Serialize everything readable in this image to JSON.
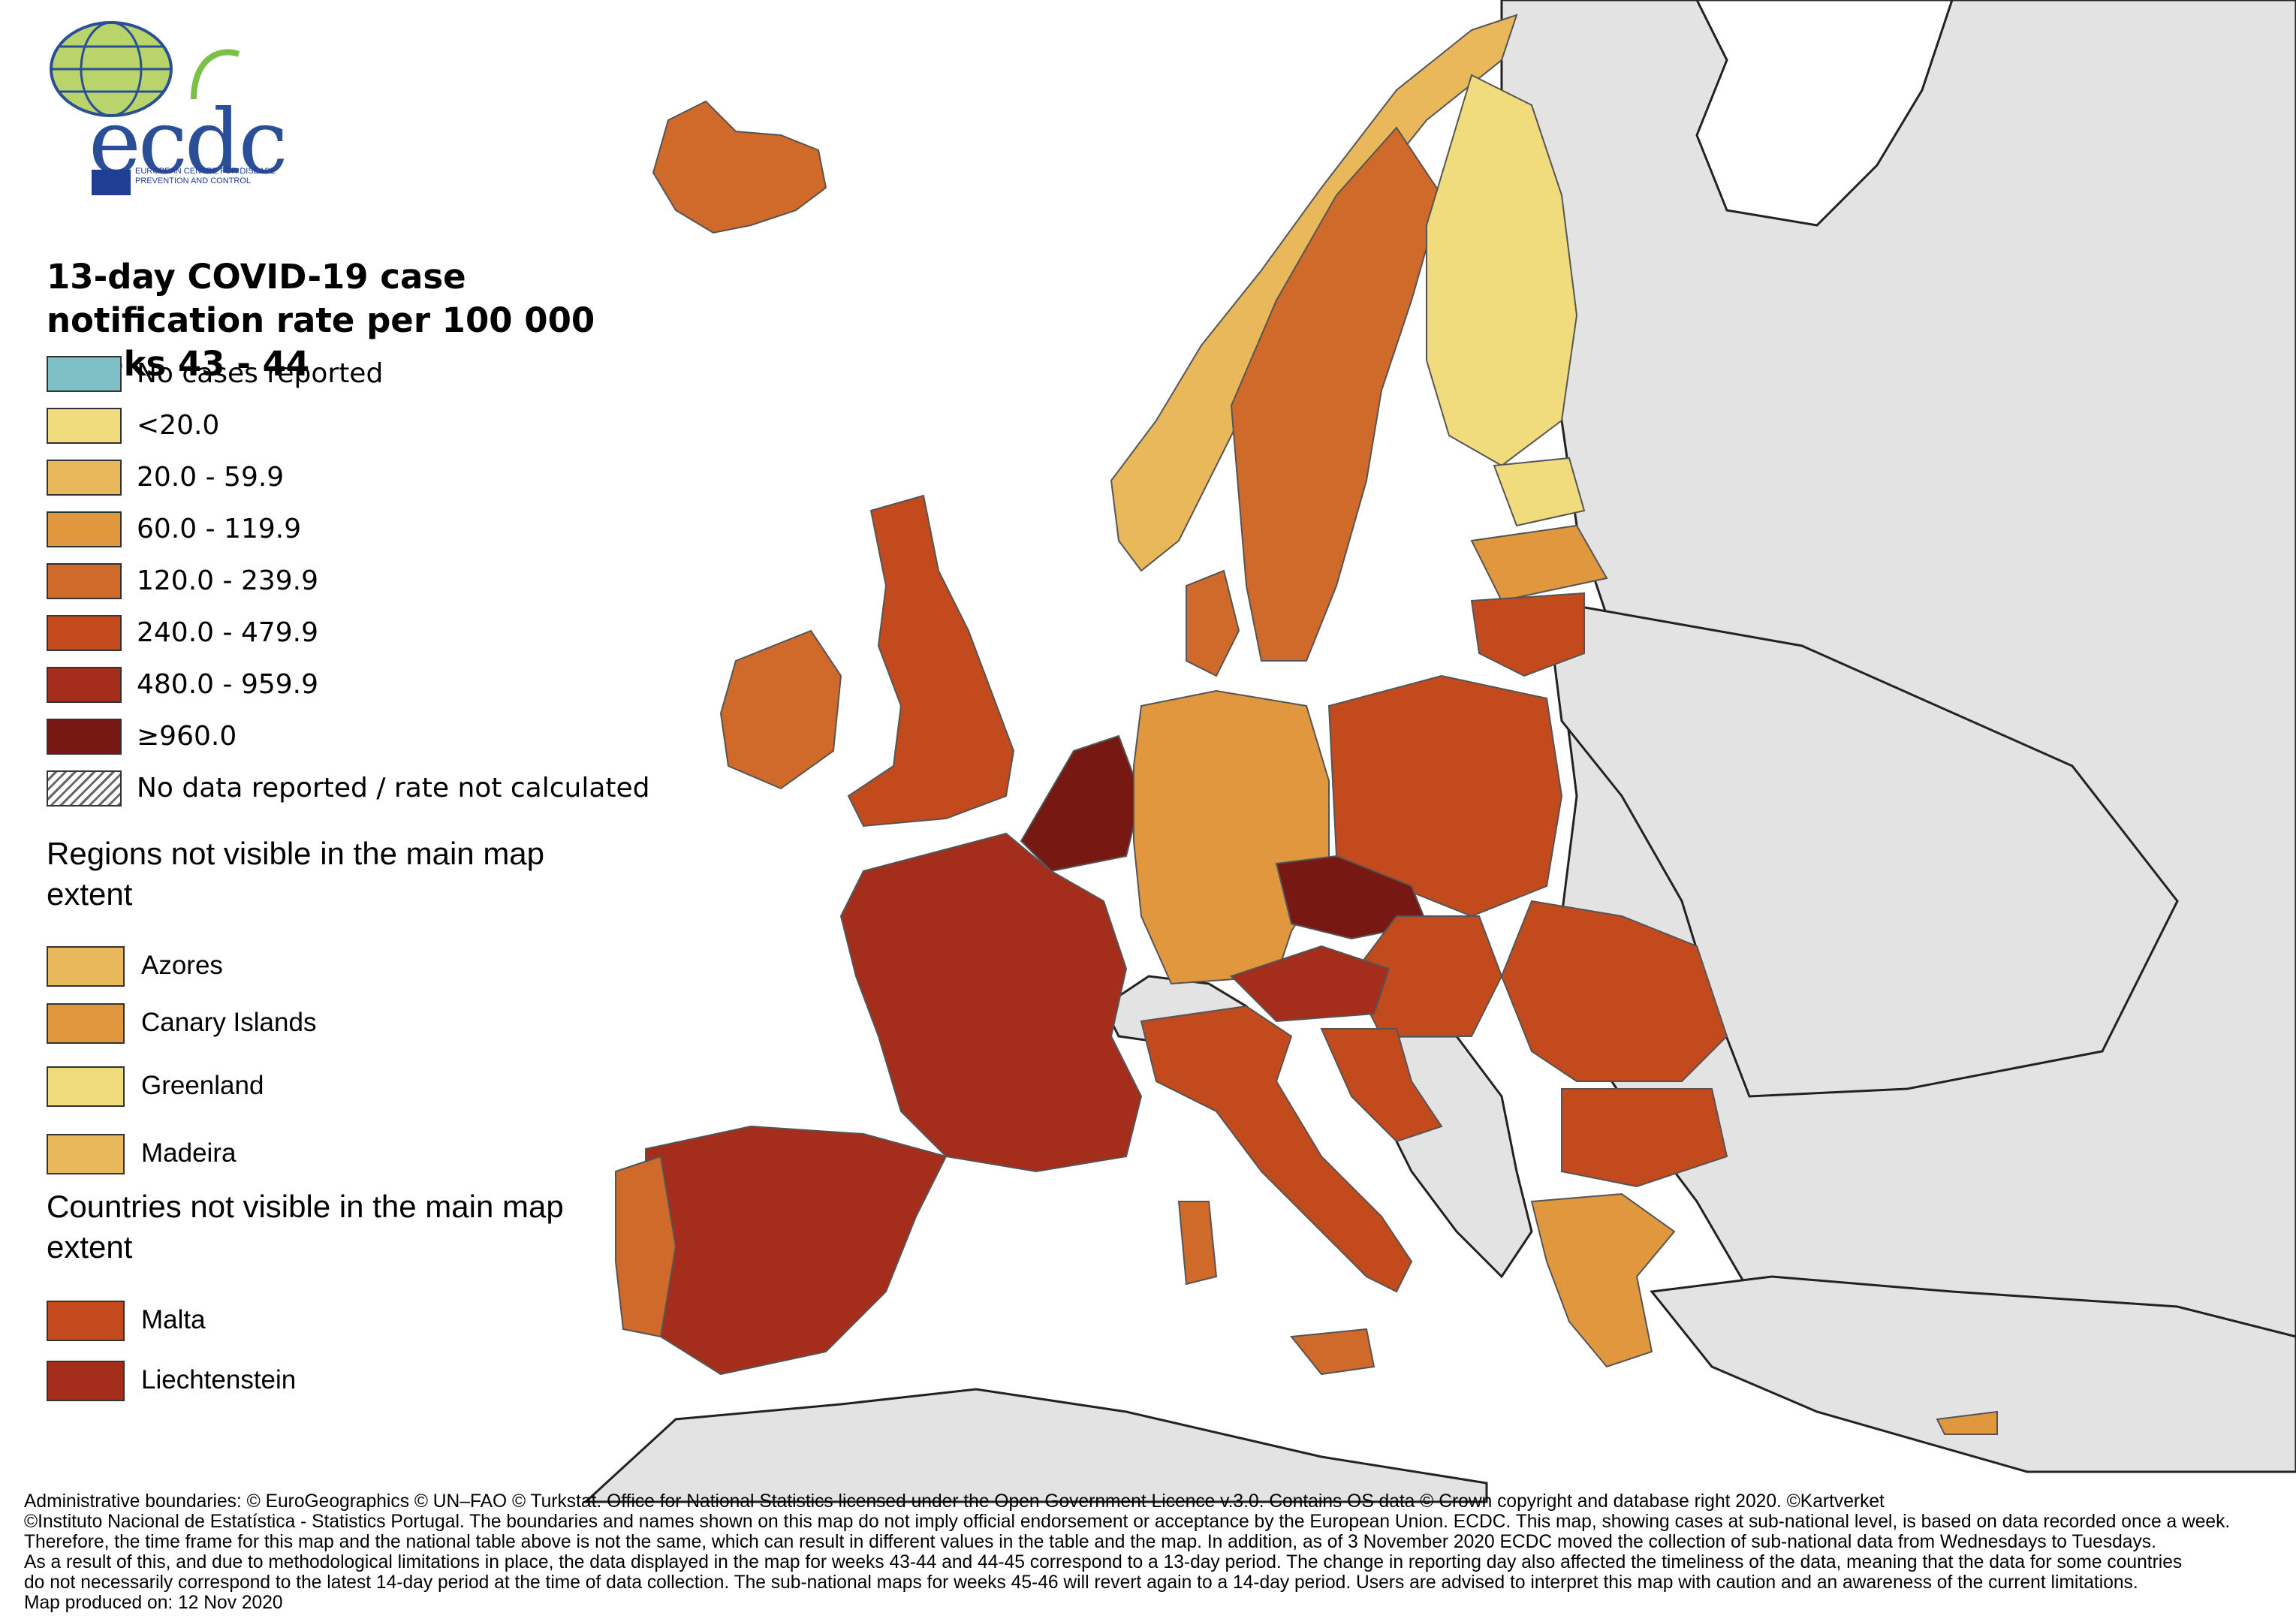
{
  "agency": {
    "acronym": "ecdc",
    "name": "EUROPEAN CENTRE FOR DISEASE PREVENTION AND CONTROL"
  },
  "title": "13-day COVID-19 case notification rate per 100 000 weeks 43 - 44",
  "legend": {
    "classes": [
      {
        "label": "No cases reported",
        "color": "#7fbfc6"
      },
      {
        "label": "<20.0",
        "color": "#f1dc7d"
      },
      {
        "label": "20.0 - 59.9",
        "color": "#e9b85a"
      },
      {
        "label": "60.0 - 119.9",
        "color": "#e0973e"
      },
      {
        "label": "120.0 - 239.9",
        "color": "#cf6a2a"
      },
      {
        "label": "240.0 - 479.9",
        "color": "#c24a1d"
      },
      {
        "label": "480.0 - 959.9",
        "color": "#a52d1c"
      },
      {
        "label": "≥960.0",
        "color": "#771912"
      },
      {
        "label": "No data reported / rate not calculated",
        "color": "hatch"
      }
    ]
  },
  "regions_heading": "Regions not visible in the main map extent",
  "regions": [
    {
      "label": "Azores",
      "color": "#e9b85a"
    },
    {
      "label": "Canary Islands",
      "color": "#e0973e"
    },
    {
      "label": "Greenland",
      "color": "#f1dc7d"
    },
    {
      "label": "Madeira",
      "color": "#e9b85a"
    }
  ],
  "countries_heading": "Countries not visible in the main map extent",
  "countries": [
    {
      "label": "Malta",
      "color": "#c24a1d"
    },
    {
      "label": "Liechtenstein",
      "color": "#a52d1c"
    }
  ],
  "footer": {
    "lines": [
      "Administrative boundaries: © EuroGeographics © UN–FAO © Turkstat. Office for National Statistics licensed under the Open Government Licence v.3.0. Contains OS data © Crown copyright and database right 2020. ©Kartverket",
      "©Instituto Nacional de Estatística - Statistics Portugal. The boundaries and names shown on this map do not imply official endorsement or acceptance by the European Union. ECDC. This map, showing cases at sub-national level, is based on data recorded once a week.",
      "Therefore, the time frame for this map and the national table above is not the same, which can result in different values in the table and the map. In addition, as of 3 November 2020 ECDC moved the collection of sub-national data from Wednesdays to Tuesdays.",
      "As a result of this, and due to methodological limitations in place, the data displayed in the map for weeks 43-44 and 44-45 correspond to a 13-day period. The change in reporting day also affected the timeliness of the data, meaning that the data for some countries",
      "do not necessarily correspond to the latest 14-day period at the time of data collection. The sub-national maps for weeks 45-46 will revert again to a 14-day period. Users are advised to interpret this map with caution and an awareness of the current limitations.",
      "Map produced on: 12 Nov 2020"
    ]
  }
}
